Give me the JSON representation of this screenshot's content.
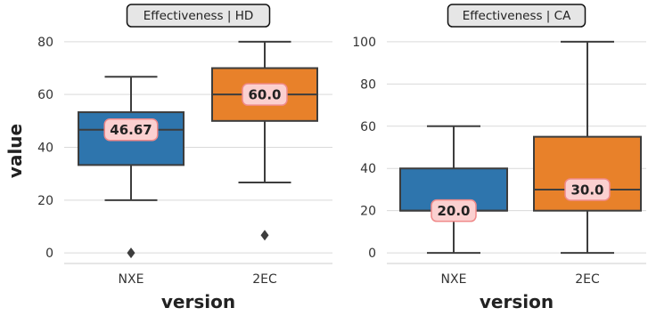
{
  "chart_data": [
    {
      "type": "box",
      "title": "Effectiveness | HD",
      "xlabel": "version",
      "ylabel": "value",
      "ylim": [
        -4,
        84
      ],
      "yticks": [
        0,
        20,
        40,
        60,
        80
      ],
      "grid": "horizontal",
      "categories": [
        "NXE",
        "2EC"
      ],
      "boxes": [
        {
          "category": "NXE",
          "color": "#2e75ad",
          "whisker_low": 20,
          "q1": 33.3,
          "median": 46.67,
          "q3": 53.3,
          "whisker_high": 66.7,
          "outliers": [
            0
          ],
          "median_label": "46.67"
        },
        {
          "category": "2EC",
          "color": "#e8812a",
          "whisker_low": 26.7,
          "q1": 50,
          "median": 60.0,
          "q3": 70,
          "whisker_high": 80,
          "outliers": [
            6.7
          ],
          "median_label": "60.0"
        }
      ]
    },
    {
      "type": "box",
      "title": "Effectiveness | CA",
      "xlabel": "version",
      "ylabel": "",
      "ylim": [
        -5,
        105
      ],
      "yticks": [
        0,
        20,
        40,
        60,
        80,
        100
      ],
      "grid": "horizontal",
      "categories": [
        "NXE",
        "2EC"
      ],
      "boxes": [
        {
          "category": "NXE",
          "color": "#2e75ad",
          "whisker_low": 0,
          "q1": 20,
          "median": 20.0,
          "q3": 40,
          "whisker_high": 60,
          "outliers": [],
          "median_label": "20.0"
        },
        {
          "category": "2EC",
          "color": "#e8812a",
          "whisker_low": 0,
          "q1": 20,
          "median": 30.0,
          "q3": 55,
          "whisker_high": 100,
          "outliers": [],
          "median_label": "30.0"
        }
      ]
    }
  ]
}
